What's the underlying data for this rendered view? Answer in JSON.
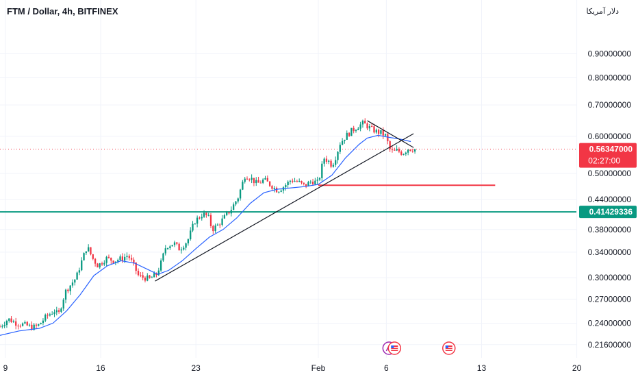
{
  "header": {
    "symbol_title": "FTM / Dollar, 4h, BITFINEX",
    "currency_label": "دلار آمریکا"
  },
  "chart_data": {
    "type": "candlestick",
    "title": "FTM / Dollar, 4h, BITFINEX",
    "y_scale": "log",
    "ylim": [
      0.208,
      0.99
    ],
    "y_ticks": [
      0.9,
      0.8,
      0.7,
      0.6,
      0.5,
      0.44,
      0.38,
      0.34,
      0.3,
      0.27,
      0.24,
      0.216
    ],
    "y_tick_labels": [
      "0.90000000",
      "0.80000000",
      "0.70000000",
      "0.60000000",
      "0.50000000",
      "0.44000000",
      "0.38000000",
      "0.34000000",
      "0.30000000",
      "0.27000000",
      "0.24000000",
      "0.21600000"
    ],
    "x_ticks": [
      {
        "label": "9",
        "day": 9
      },
      {
        "label": "16",
        "day": 16
      },
      {
        "label": "23",
        "day": 23
      },
      {
        "label": "Feb",
        "day": 32
      },
      {
        "label": "6",
        "day": 37
      },
      {
        "label": "13",
        "day": 44
      },
      {
        "label": "20",
        "day": 51
      }
    ],
    "x_day_range": [
      8.6,
      55.5
    ],
    "last_day": 39.2,
    "price_path": [
      [
        8.6,
        0.236
      ],
      [
        9.2,
        0.245
      ],
      [
        9.8,
        0.24
      ],
      [
        10.4,
        0.238
      ],
      [
        11.0,
        0.235
      ],
      [
        11.4,
        0.237
      ],
      [
        12.0,
        0.248
      ],
      [
        12.6,
        0.255
      ],
      [
        12.9,
        0.25
      ],
      [
        13.4,
        0.28
      ],
      [
        13.8,
        0.29
      ],
      [
        14.2,
        0.3
      ],
      [
        14.6,
        0.325
      ],
      [
        15.0,
        0.35
      ],
      [
        15.4,
        0.33
      ],
      [
        15.8,
        0.318
      ],
      [
        16.4,
        0.33
      ],
      [
        17.0,
        0.326
      ],
      [
        17.6,
        0.33
      ],
      [
        18.0,
        0.335
      ],
      [
        18.4,
        0.32
      ],
      [
        18.8,
        0.302
      ],
      [
        19.2,
        0.3
      ],
      [
        19.6,
        0.298
      ],
      [
        20.1,
        0.305
      ],
      [
        20.4,
        0.32
      ],
      [
        20.8,
        0.35
      ],
      [
        21.4,
        0.355
      ],
      [
        21.8,
        0.345
      ],
      [
        22.4,
        0.36
      ],
      [
        22.9,
        0.395
      ],
      [
        23.5,
        0.41
      ],
      [
        23.9,
        0.405
      ],
      [
        24.2,
        0.38
      ],
      [
        24.6,
        0.388
      ],
      [
        25.0,
        0.4
      ],
      [
        25.6,
        0.42
      ],
      [
        26.1,
        0.445
      ],
      [
        26.6,
        0.495
      ],
      [
        27.0,
        0.49
      ],
      [
        27.5,
        0.475
      ],
      [
        28.0,
        0.485
      ],
      [
        28.6,
        0.47
      ],
      [
        29.0,
        0.46
      ],
      [
        29.5,
        0.47
      ],
      [
        30.0,
        0.485
      ],
      [
        30.5,
        0.48
      ],
      [
        31.0,
        0.47
      ],
      [
        31.5,
        0.482
      ],
      [
        32.0,
        0.478
      ],
      [
        32.4,
        0.54
      ],
      [
        32.8,
        0.53
      ],
      [
        33.0,
        0.52
      ],
      [
        33.3,
        0.545
      ],
      [
        33.6,
        0.58
      ],
      [
        34.0,
        0.6
      ],
      [
        34.4,
        0.615
      ],
      [
        34.9,
        0.63
      ],
      [
        35.3,
        0.64
      ],
      [
        35.8,
        0.625
      ],
      [
        36.2,
        0.615
      ],
      [
        36.6,
        0.61
      ],
      [
        37.0,
        0.6
      ],
      [
        37.2,
        0.565
      ],
      [
        37.5,
        0.555
      ],
      [
        37.8,
        0.56
      ],
      [
        38.2,
        0.552
      ],
      [
        38.6,
        0.565
      ],
      [
        39.2,
        0.563
      ]
    ],
    "moving_average": [
      [
        8.6,
        0.226
      ],
      [
        10.0,
        0.231
      ],
      [
        11.5,
        0.234
      ],
      [
        12.5,
        0.24
      ],
      [
        13.5,
        0.255
      ],
      [
        14.5,
        0.276
      ],
      [
        15.5,
        0.303
      ],
      [
        16.5,
        0.318
      ],
      [
        17.5,
        0.326
      ],
      [
        18.5,
        0.322
      ],
      [
        19.5,
        0.312
      ],
      [
        20.2,
        0.305
      ],
      [
        21.0,
        0.311
      ],
      [
        22.0,
        0.326
      ],
      [
        23.0,
        0.346
      ],
      [
        24.0,
        0.366
      ],
      [
        25.0,
        0.38
      ],
      [
        26.0,
        0.402
      ],
      [
        27.0,
        0.432
      ],
      [
        28.0,
        0.455
      ],
      [
        29.0,
        0.463
      ],
      [
        30.0,
        0.466
      ],
      [
        31.0,
        0.469
      ],
      [
        32.0,
        0.474
      ],
      [
        33.0,
        0.496
      ],
      [
        34.0,
        0.54
      ],
      [
        35.0,
        0.577
      ],
      [
        35.6,
        0.595
      ],
      [
        36.4,
        0.603
      ],
      [
        37.2,
        0.597
      ],
      [
        38.0,
        0.592
      ],
      [
        38.8,
        0.585
      ]
    ],
    "trendlines": [
      {
        "name": "ascending",
        "from": [
          20.0,
          0.295
        ],
        "to": [
          39.0,
          0.608
        ],
        "color": "#131722"
      },
      {
        "name": "descending",
        "from": [
          35.6,
          0.648
        ],
        "to": [
          39.0,
          0.568
        ],
        "color": "#131722"
      }
    ],
    "horizontal_lines": [
      {
        "name": "support",
        "value": 0.41429336,
        "label": "0.41429336",
        "color": "#089981",
        "from_day": 8.6,
        "to_day": null
      },
      {
        "name": "resistance",
        "value": 0.472,
        "label": "",
        "color": "#f23645",
        "from_day": 32.0,
        "to_day": 45.0
      }
    ],
    "current_price": {
      "value": 0.56347,
      "label": "0.56347000",
      "countdown": "02:27:00",
      "color": "#f23645"
    },
    "colors": {
      "up": "#089981",
      "down": "#f23645",
      "ma": "#2962ff",
      "grid": "#f0f3fa",
      "axis_text": "#131722"
    },
    "grid": true,
    "legend": "none"
  },
  "event_markers": [
    {
      "name": "event-marker-dividend",
      "day": 37.2,
      "icon": "dividend-icon"
    },
    {
      "name": "event-marker-economic-1",
      "day": 37.6,
      "icon": "us-flag-icon"
    },
    {
      "name": "event-marker-economic-2",
      "day": 41.6,
      "icon": "us-flag-icon"
    }
  ]
}
